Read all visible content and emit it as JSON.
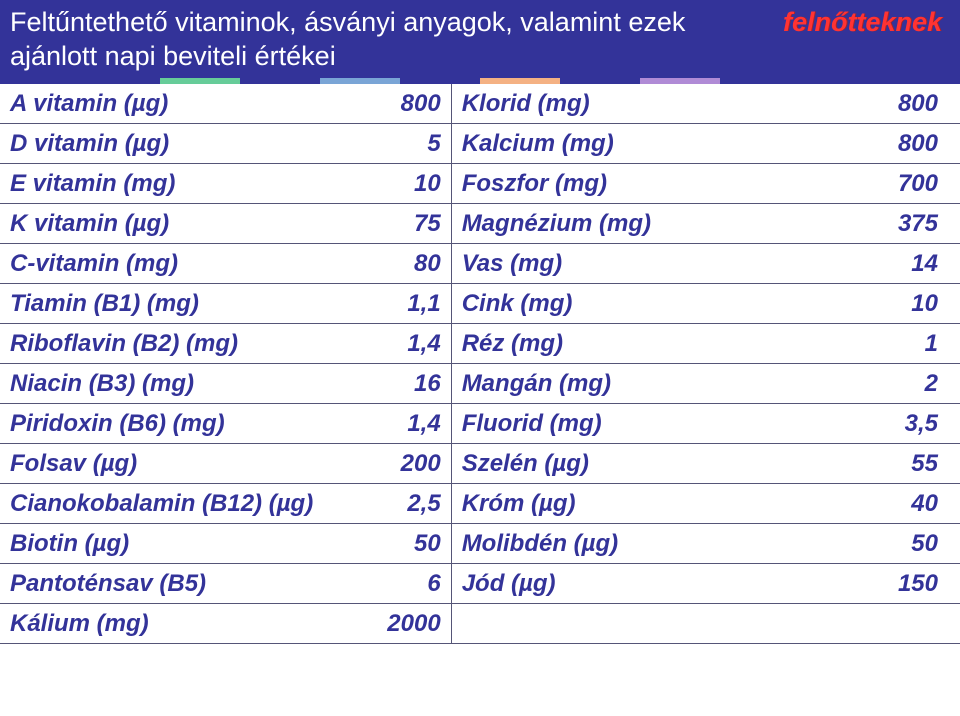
{
  "header": {
    "line1_left": "Feltűntethető vitaminok, ásványi anyagok, valamint ezek",
    "line1_emph": "felnőtteknek",
    "line2": "ajánlott napi beviteli értékei"
  },
  "accent_colors": [
    "#333399",
    "#333399",
    "#66cc99",
    "#333399",
    "#7aa5d6",
    "#333399",
    "#f4b183",
    "#333399",
    "#b08bd6",
    "#333399",
    "#333399",
    "#333399"
  ],
  "colors": {
    "header_bg": "#333399",
    "header_text": "#ffffff",
    "emph_text": "#ff3333",
    "cell_text": "#333399",
    "border": "#555577",
    "background": "#ffffff"
  },
  "typography": {
    "header_fontsize": 27,
    "cell_fontsize": 24,
    "cell_fontstyle": "italic",
    "cell_fontweight": 700,
    "font_family": "Verdana"
  },
  "table": {
    "columns": [
      "name_left",
      "value_left",
      "name_right",
      "value_right"
    ],
    "column_widths_pct": [
      35,
      12,
      34,
      19
    ],
    "rows": [
      {
        "l_name": "A vitamin (µg)",
        "l_val": "800",
        "r_name": "Klorid (mg)",
        "r_val": "800"
      },
      {
        "l_name": "D vitamin (µg)",
        "l_val": "5",
        "r_name": "Kalcium (mg)",
        "r_val": "800"
      },
      {
        "l_name": "E vitamin (mg)",
        "l_val": "10",
        "r_name": "Foszfor (mg)",
        "r_val": "700"
      },
      {
        "l_name": "K vitamin (µg)",
        "l_val": "75",
        "r_name": "Magnézium (mg)",
        "r_val": "375"
      },
      {
        "l_name": "C-vitamin (mg)",
        "l_val": "80",
        "r_name": "Vas (mg)",
        "r_val": "14"
      },
      {
        "l_name": "Tiamin (B1) (mg)",
        "l_val": "1,1",
        "r_name": "Cink (mg)",
        "r_val": "10"
      },
      {
        "l_name": "Riboflavin (B2) (mg)",
        "l_val": "1,4",
        "r_name": "Réz (mg)",
        "r_val": "1"
      },
      {
        "l_name": "Niacin (B3) (mg)",
        "l_val": "16",
        "r_name": "Mangán (mg)",
        "r_val": "2"
      },
      {
        "l_name": "Piridoxin (B6) (mg)",
        "l_val": "1,4",
        "r_name": "Fluorid (mg)",
        "r_val": "3,5"
      },
      {
        "l_name": "Folsav  (µg)",
        "l_val": "200",
        "r_name": "Szelén (µg)",
        "r_val": "55"
      },
      {
        "l_name": "Cianokobalamin (B12) (µg)",
        "l_val": "2,5",
        "r_name": "Króm (µg)",
        "r_val": "40"
      },
      {
        "l_name": "Biotin (µg)",
        "l_val": "50",
        "r_name": "Molibdén (µg)",
        "r_val": "50"
      },
      {
        "l_name": "Pantoténsav (B5)",
        "l_val": "6",
        "r_name": "Jód (µg)",
        "r_val": "150"
      },
      {
        "l_name": "Kálium (mg)",
        "l_val": "2000",
        "r_name": "",
        "r_val": ""
      }
    ]
  }
}
